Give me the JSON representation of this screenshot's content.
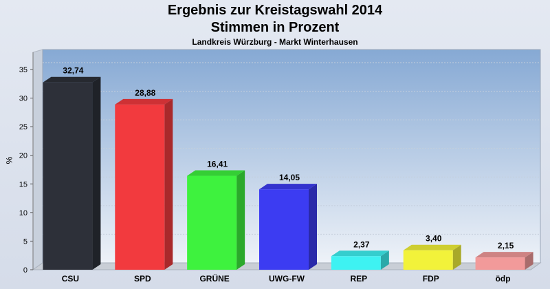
{
  "chart_data": {
    "type": "bar",
    "title": "Ergebnis zur Kreistagswahl 2014",
    "subtitle": "Stimmen in Prozent",
    "caption": "Landkreis Würzburg - Markt Winterhausen",
    "ylabel": "%",
    "xlabel": "",
    "ylim": [
      0,
      38
    ],
    "yticks": [
      0,
      5,
      10,
      15,
      20,
      25,
      30,
      35
    ],
    "categories": [
      "CSU",
      "SPD",
      "GRÜNE",
      "UWG-FW",
      "REP",
      "FDP",
      "ödp"
    ],
    "values": [
      32.74,
      28.88,
      16.41,
      14.05,
      2.37,
      3.4,
      2.15
    ],
    "value_labels": [
      "32,74",
      "28,88",
      "16,41",
      "14,05",
      "2,37",
      "3,40",
      "2,15"
    ],
    "colors": [
      "#2d3039",
      "#f23a3e",
      "#3ef23e",
      "#3c3cf2",
      "#3ef2f2",
      "#f2f23a",
      "#f29a9a"
    ],
    "grid": true
  }
}
